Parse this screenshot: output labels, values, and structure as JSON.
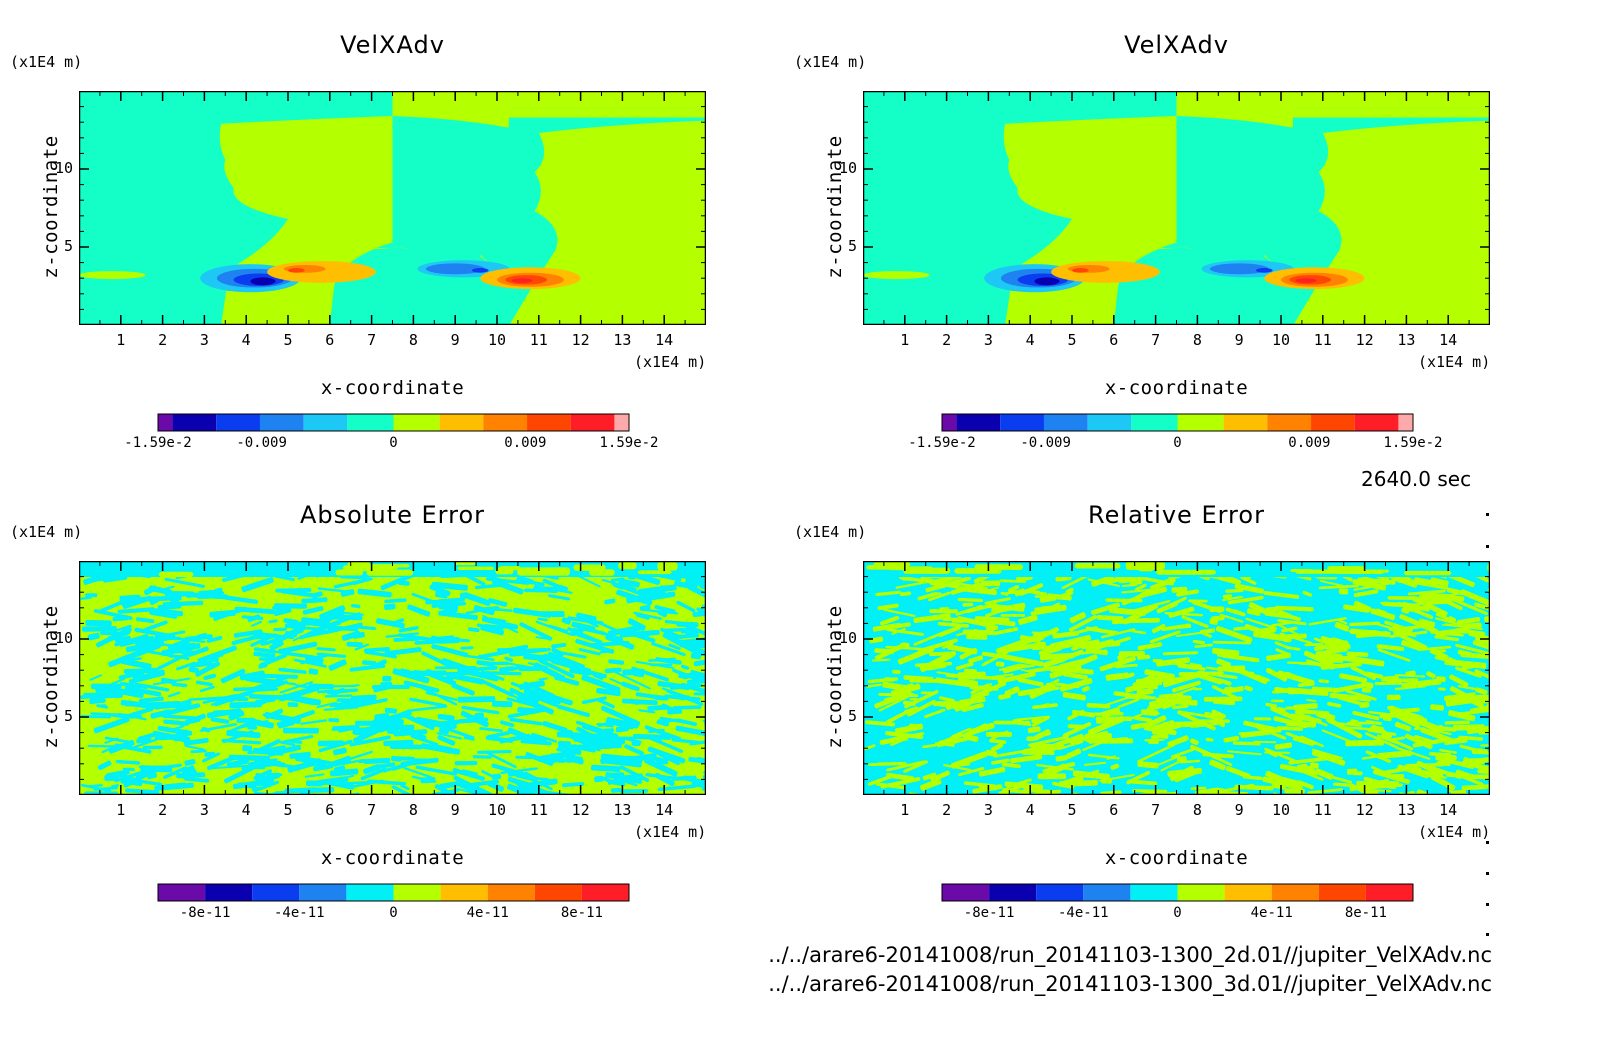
{
  "time_label": "2640.0 sec",
  "file_paths": [
    "../../arare6-20141008/run_20141103-1300_2d.01//jupiter_VelXAdv.nc",
    "../../arare6-20141008/run_20141103-1300_3d.01//jupiter_VelXAdv.nc"
  ],
  "palette": {
    "purple": "#6a0aa8",
    "navy": "#0a00b0",
    "blue": "#0a3cf0",
    "mid_blue": "#1e82f0",
    "sky": "#1ec8f5",
    "aqua": "#00f0f5",
    "mint": "#14ffc8",
    "lime": "#b4ff00",
    "amber": "#ffbe00",
    "orange": "#ff8200",
    "red_orange": "#ff4600",
    "red": "#ff1e28",
    "pink": "#ffaaaa"
  },
  "chart_data": [
    {
      "type": "heatmap",
      "title": "VelXAdv",
      "xlabel": "x-coordinate",
      "ylabel": "z-coordinate",
      "x_unit": "(x1E4 m)",
      "y_unit": "(x1E4 m)",
      "xlim": [
        0,
        15
      ],
      "ylim": [
        0,
        15
      ],
      "x_ticks": [
        "1",
        "2",
        "3",
        "4",
        "5",
        "6",
        "7",
        "8",
        "9",
        "10",
        "11",
        "12",
        "13",
        "14"
      ],
      "y_ticks": [
        "5",
        "10"
      ],
      "colorbar_labels": [
        "-1.59e-2",
        "-0.009",
        "0",
        "0.009",
        "1.59e-2"
      ]
    },
    {
      "type": "heatmap",
      "title": "VelXAdv",
      "xlabel": "x-coordinate",
      "ylabel": "z-coordinate",
      "x_unit": "(x1E4 m)",
      "y_unit": "(x1E4 m)",
      "xlim": [
        0,
        15
      ],
      "ylim": [
        0,
        15
      ],
      "x_ticks": [
        "1",
        "2",
        "3",
        "4",
        "5",
        "6",
        "7",
        "8",
        "9",
        "10",
        "11",
        "12",
        "13",
        "14"
      ],
      "y_ticks": [
        "5",
        "10"
      ],
      "colorbar_labels": [
        "-1.59e-2",
        "-0.009",
        "0",
        "0.009",
        "1.59e-2"
      ]
    },
    {
      "type": "heatmap",
      "title": "Absolute Error",
      "xlabel": "x-coordinate",
      "ylabel": "z-coordinate",
      "x_unit": "(x1E4 m)",
      "y_unit": "(x1E4 m)",
      "xlim": [
        0,
        15
      ],
      "ylim": [
        0,
        15
      ],
      "x_ticks": [
        "1",
        "2",
        "3",
        "4",
        "5",
        "6",
        "7",
        "8",
        "9",
        "10",
        "11",
        "12",
        "13",
        "14"
      ],
      "y_ticks": [
        "5",
        "10"
      ],
      "colorbar_labels": [
        "-8e-11",
        "-4e-11",
        "0",
        "4e-11",
        "8e-11"
      ]
    },
    {
      "type": "heatmap",
      "title": "Relative Error",
      "xlabel": "x-coordinate",
      "ylabel": "z-coordinate",
      "x_unit": "(x1E4 m)",
      "y_unit": "(x1E4 m)",
      "xlim": [
        0,
        15
      ],
      "ylim": [
        0,
        15
      ],
      "x_ticks": [
        "1",
        "2",
        "3",
        "4",
        "5",
        "6",
        "7",
        "8",
        "9",
        "10",
        "11",
        "12",
        "13",
        "14"
      ],
      "y_ticks": [
        "5",
        "10"
      ],
      "colorbar_labels": [
        "-8e-11",
        "-4e-11",
        "0",
        "4e-11",
        "8e-11"
      ]
    }
  ]
}
